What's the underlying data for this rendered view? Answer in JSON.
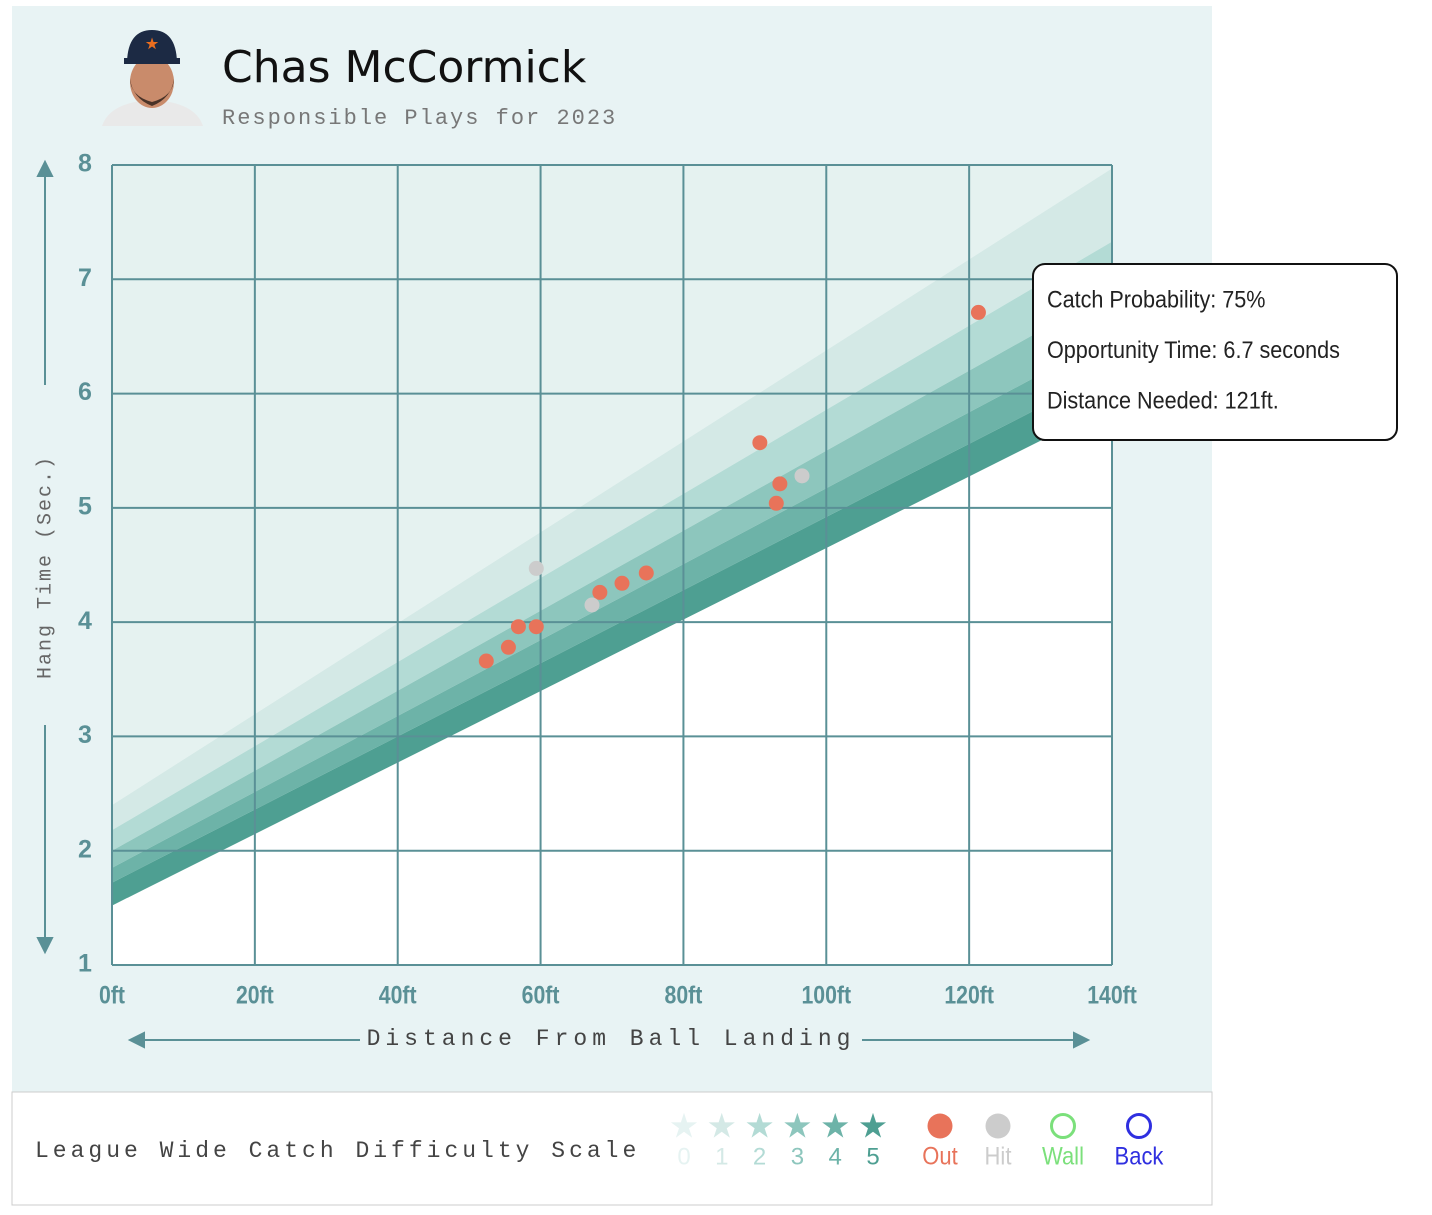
{
  "chart_data": {
    "type": "scatter",
    "title": "Chas McCormick",
    "subtitle": "Responsible Plays for 2023",
    "y_label": "Hang Time (Sec.)",
    "x_label": "Distance From Ball Landing",
    "xlim": [
      0,
      140
    ],
    "ylim": [
      1,
      8
    ],
    "xticks": [
      {
        "value": 0,
        "label": "0ft"
      },
      {
        "value": 20,
        "label": "20ft"
      },
      {
        "value": 40,
        "label": "40ft"
      },
      {
        "value": 60,
        "label": "60ft"
      },
      {
        "value": 80,
        "label": "80ft"
      },
      {
        "value": 100,
        "label": "100ft"
      },
      {
        "value": 120,
        "label": "120ft"
      },
      {
        "value": 140,
        "label": "140ft"
      }
    ],
    "yticks": [
      1,
      2,
      3,
      4,
      5,
      6,
      7,
      8
    ],
    "grid": true,
    "band_edges": [
      [
        2.4,
        7.97
      ],
      [
        2.18,
        7.33
      ],
      [
        2.0,
        6.9
      ],
      [
        1.85,
        6.5
      ],
      [
        1.72,
        6.2
      ],
      [
        1.52,
        5.9
      ]
    ],
    "band_colors": [
      "#d4e9e6",
      "#b3dbd5",
      "#8dc6bd",
      "#6db3a8",
      "#4e9f92"
    ],
    "series": [
      {
        "name": "Out",
        "color": "#e8735a",
        "marker": "filled",
        "x": [
          121.3,
          90.7,
          93.5,
          93.0,
          74.8,
          71.4,
          68.3,
          59.4,
          56.9,
          55.5,
          52.4
        ],
        "values": [
          6.71,
          5.57,
          5.21,
          5.04,
          4.43,
          4.34,
          4.26,
          3.96,
          3.96,
          3.78,
          3.66
        ]
      },
      {
        "name": "Hit",
        "color": "#cccccc",
        "marker": "filled",
        "x": [
          59.4,
          67.2,
          96.6
        ],
        "values": [
          4.47,
          4.15,
          5.28
        ]
      },
      {
        "name": "Wall",
        "color": "#7be07b",
        "marker": "ring",
        "x": [],
        "values": []
      },
      {
        "name": "Back",
        "color": "#2f2fe0",
        "marker": "ring",
        "x": [],
        "values": []
      }
    ],
    "difficulty_scale": {
      "title": "League Wide Catch Difficulty Scale",
      "levels": [
        0,
        1,
        2,
        3,
        4,
        5
      ],
      "colors": [
        "#e6f3f2",
        "#d4e9e6",
        "#b3dbd5",
        "#8dc6bd",
        "#6db3a8",
        "#4e9f92"
      ]
    },
    "tooltip": [
      "Catch Probability: 75%",
      "Opportunity Time: 6.7 seconds",
      "Distance Needed: 121ft."
    ]
  }
}
